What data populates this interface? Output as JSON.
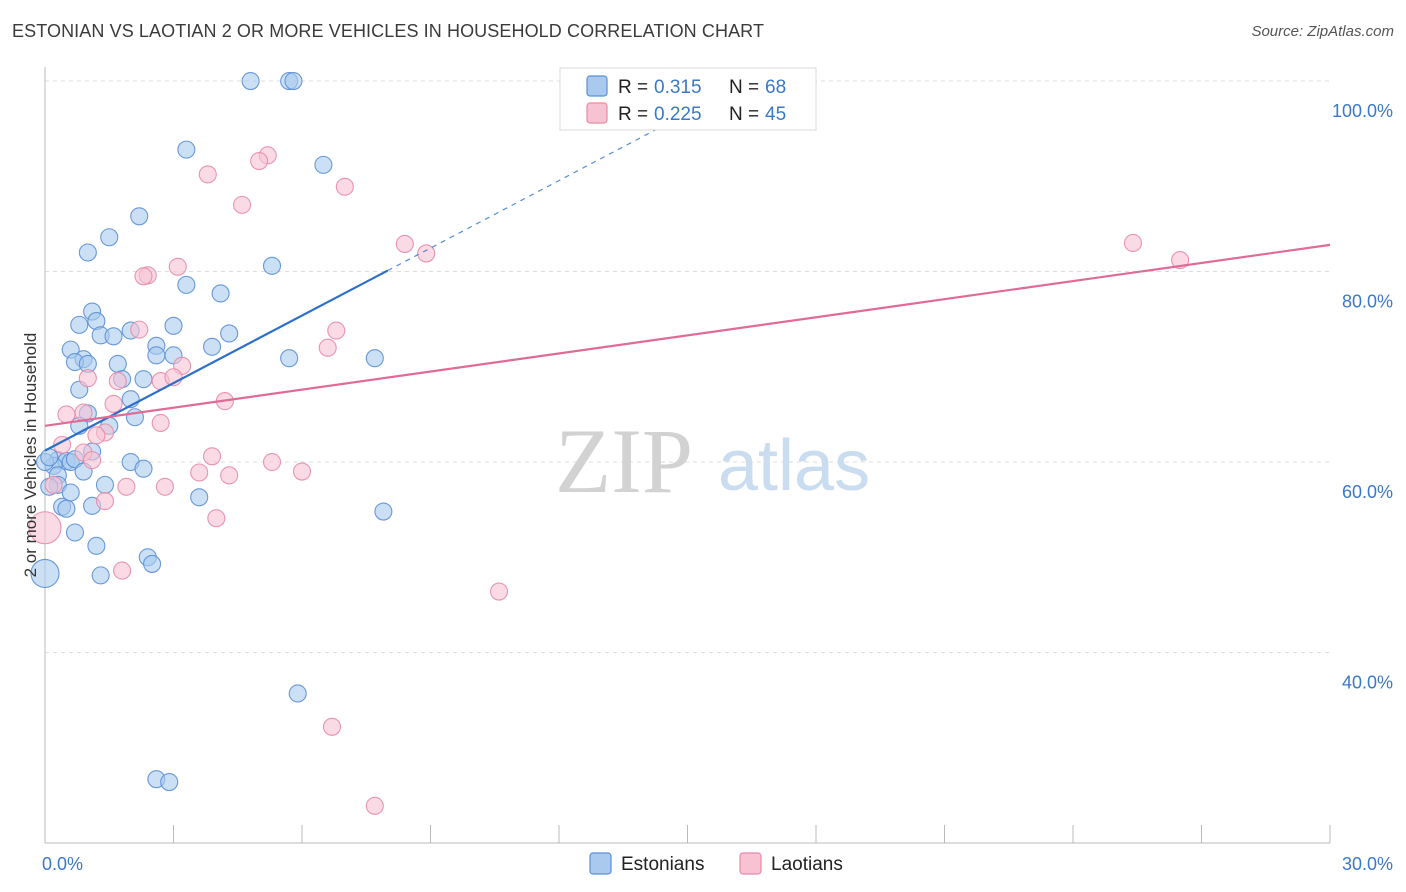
{
  "title": "ESTONIAN VS LAOTIAN 2 OR MORE VEHICLES IN HOUSEHOLD CORRELATION CHART",
  "source": "Source: ZipAtlas.com",
  "colors": {
    "blue_fill": "#a9c9ef",
    "blue_stroke": "#5b8fd6",
    "blue_line": "#2d6fc9",
    "pink_fill": "#f7c3d3",
    "pink_stroke": "#e88aa8",
    "pink_line": "#e06b96",
    "grid": "#dddddd",
    "tick_text": "#3b78c8"
  },
  "legend": {
    "rows": [
      {
        "r_label": "R =",
        "r_value": "0.315",
        "n_label": "N =",
        "n_value": "68"
      },
      {
        "r_label": "R =",
        "r_value": "0.225",
        "n_label": "N =",
        "n_value": "45"
      }
    ]
  },
  "watermark": {
    "zip": "ZIP",
    "atlas": "atlas"
  },
  "chart_data": {
    "type": "scatter",
    "title": "ESTONIAN VS LAOTIAN 2 OR MORE VEHICLES IN HOUSEHOLD CORRELATION CHART",
    "xlabel": "",
    "ylabel": "2 or more Vehicles in Household",
    "xlim": [
      0,
      30
    ],
    "ylim": [
      20,
      102
    ],
    "x_tick_labels": [
      {
        "value": 0,
        "label": "0.0%"
      },
      {
        "value": 30,
        "label": "30.0%"
      }
    ],
    "y_tick_labels": [
      {
        "value": 40,
        "label": "40.0%"
      },
      {
        "value": 60,
        "label": "60.0%"
      },
      {
        "value": 80,
        "label": "80.0%"
      },
      {
        "value": 100,
        "label": "100.0%"
      }
    ],
    "series": [
      {
        "name": "Estonians",
        "color": "#a9c9ef",
        "r": 0.315,
        "n": 68,
        "trend": {
          "x0": 0,
          "y0": 61.2,
          "x1": 8.0,
          "y1": 80.1,
          "dash_to_x": 16.0,
          "dash_to_y": 99.0
        },
        "points": [
          [
            4.8,
            100.0
          ],
          [
            5.7,
            100.0
          ],
          [
            5.8,
            100.0
          ],
          [
            3.3,
            92.8
          ],
          [
            6.5,
            91.2
          ],
          [
            2.2,
            85.8
          ],
          [
            1.5,
            83.6
          ],
          [
            1.0,
            82.0
          ],
          [
            5.3,
            80.6
          ],
          [
            3.3,
            78.6
          ],
          [
            4.1,
            77.7
          ],
          [
            1.1,
            75.8
          ],
          [
            1.2,
            74.8
          ],
          [
            0.8,
            74.4
          ],
          [
            3.0,
            74.3
          ],
          [
            2.0,
            73.8
          ],
          [
            4.3,
            73.5
          ],
          [
            1.3,
            73.3
          ],
          [
            1.6,
            73.2
          ],
          [
            2.6,
            72.2
          ],
          [
            3.9,
            72.1
          ],
          [
            0.6,
            71.8
          ],
          [
            2.6,
            71.2
          ],
          [
            3.0,
            71.2
          ],
          [
            5.7,
            70.9
          ],
          [
            7.7,
            70.9
          ],
          [
            0.9,
            70.8
          ],
          [
            0.7,
            70.5
          ],
          [
            1.0,
            70.3
          ],
          [
            1.7,
            70.3
          ],
          [
            1.8,
            68.7
          ],
          [
            2.3,
            68.7
          ],
          [
            0.8,
            67.6
          ],
          [
            2.0,
            66.6
          ],
          [
            1.0,
            65.1
          ],
          [
            2.1,
            64.7
          ],
          [
            0.8,
            63.8
          ],
          [
            1.5,
            63.8
          ],
          [
            1.1,
            61.1
          ],
          [
            0.3,
            60.2
          ],
          [
            0.5,
            60.1
          ],
          [
            0.6,
            60.0
          ],
          [
            0.7,
            60.3
          ],
          [
            2.0,
            60.0
          ],
          [
            0.2,
            59.6
          ],
          [
            2.3,
            59.3
          ],
          [
            0.9,
            59.0
          ],
          [
            0.3,
            58.6
          ],
          [
            0.3,
            57.6
          ],
          [
            1.4,
            57.6
          ],
          [
            0.1,
            57.4
          ],
          [
            0.6,
            56.8
          ],
          [
            3.6,
            56.3
          ],
          [
            1.1,
            55.4
          ],
          [
            0.4,
            55.3
          ],
          [
            0.5,
            55.1
          ],
          [
            7.9,
            54.8
          ],
          [
            0.7,
            52.6
          ],
          [
            1.2,
            51.2
          ],
          [
            2.4,
            50.0
          ],
          [
            2.5,
            49.3
          ],
          [
            1.3,
            48.1
          ],
          [
            0.0,
            48.3
          ],
          [
            5.9,
            35.7
          ],
          [
            2.6,
            26.7
          ],
          [
            2.9,
            26.4
          ],
          [
            0.0,
            60.0
          ],
          [
            0.1,
            60.5
          ]
        ]
      },
      {
        "name": "Laotians",
        "color": "#f7c3d3",
        "r": 0.225,
        "n": 45,
        "trend": {
          "x0": 0,
          "y0": 63.8,
          "x1": 30,
          "y1": 82.8
        },
        "points": [
          [
            5.2,
            92.2
          ],
          [
            5.0,
            91.6
          ],
          [
            3.8,
            90.2
          ],
          [
            7.0,
            88.9
          ],
          [
            4.6,
            87.0
          ],
          [
            25.4,
            83.0
          ],
          [
            8.4,
            82.9
          ],
          [
            8.9,
            81.9
          ],
          [
            26.5,
            81.2
          ],
          [
            3.1,
            80.5
          ],
          [
            2.4,
            79.6
          ],
          [
            2.3,
            79.5
          ],
          [
            2.2,
            73.9
          ],
          [
            6.8,
            73.8
          ],
          [
            6.6,
            72.0
          ],
          [
            3.2,
            70.1
          ],
          [
            1.0,
            68.8
          ],
          [
            1.7,
            68.5
          ],
          [
            2.7,
            68.5
          ],
          [
            3.0,
            68.9
          ],
          [
            4.2,
            66.4
          ],
          [
            1.6,
            66.1
          ],
          [
            0.9,
            65.2
          ],
          [
            0.5,
            65.0
          ],
          [
            2.7,
            64.1
          ],
          [
            1.4,
            63.1
          ],
          [
            1.2,
            62.8
          ],
          [
            0.4,
            61.8
          ],
          [
            0.9,
            61.0
          ],
          [
            3.9,
            60.6
          ],
          [
            1.1,
            60.2
          ],
          [
            5.3,
            60.0
          ],
          [
            6.0,
            59.0
          ],
          [
            3.6,
            58.9
          ],
          [
            4.3,
            58.6
          ],
          [
            0.2,
            57.6
          ],
          [
            1.9,
            57.4
          ],
          [
            2.8,
            57.4
          ],
          [
            1.4,
            55.9
          ],
          [
            4.0,
            54.1
          ],
          [
            0.0,
            53.1
          ],
          [
            1.8,
            48.6
          ],
          [
            10.6,
            46.4
          ],
          [
            6.7,
            32.2
          ],
          [
            7.7,
            23.9
          ]
        ]
      }
    ]
  }
}
